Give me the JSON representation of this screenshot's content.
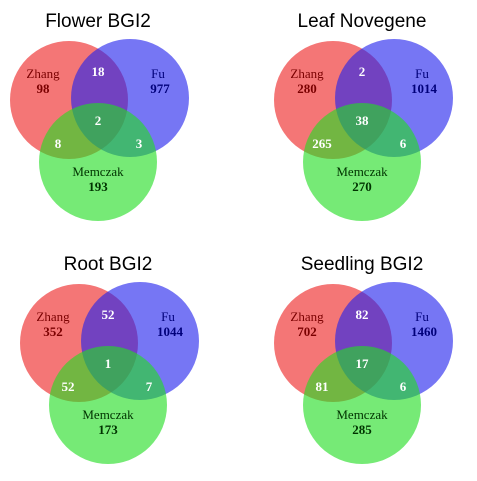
{
  "diagrams": [
    {
      "title": "Flower BGI2",
      "labels": {
        "zhang": "Zhang",
        "fu": "Fu",
        "memczak": "Memczak"
      },
      "counts": {
        "zhang": 98,
        "fu": 977,
        "memczak": 193,
        "zhang_fu": 18,
        "zhang_memczak": 8,
        "fu_memczak": 3,
        "all": 2
      }
    },
    {
      "title": "Leaf Novegene",
      "labels": {
        "zhang": "Zhang",
        "fu": "Fu",
        "memczak": "Memczak"
      },
      "counts": {
        "zhang": 280,
        "fu": 1014,
        "memczak": 270,
        "zhang_fu": 2,
        "zhang_memczak": 265,
        "fu_memczak": 6,
        "all": 38
      }
    },
    {
      "title": "Root BGI2",
      "labels": {
        "zhang": "Zhang",
        "fu": "Fu",
        "memczak": "Memczak"
      },
      "counts": {
        "zhang": 352,
        "fu": 1044,
        "memczak": 173,
        "zhang_fu": 52,
        "zhang_memczak": 52,
        "fu_memczak": 7,
        "all": 1
      }
    },
    {
      "title": "Seedling BGI2",
      "labels": {
        "zhang": "Zhang",
        "fu": "Fu",
        "memczak": "Memczak"
      },
      "counts": {
        "zhang": 702,
        "fu": 1460,
        "memczak": 285,
        "zhang_fu": 82,
        "zhang_memczak": 81,
        "fu_memczak": 6,
        "all": 17
      }
    }
  ]
}
